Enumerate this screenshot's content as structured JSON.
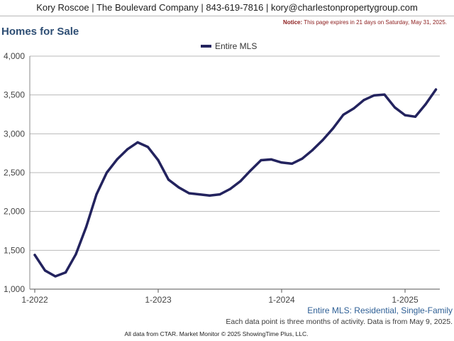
{
  "header": {
    "contact": "Kory Roscoe | The Boulevard Company | 843-619-7816 | kory@charlestonpropertygroup.com"
  },
  "page_title": "Homes for Sale",
  "notice": {
    "label": "Notice:",
    "text": "This page expires in 21 days on Saturday, May 31, 2025."
  },
  "subtitle": "Entire MLS: Residential, Single-Family",
  "footnote": "Each data point is three months of activity. Data is from May 9, 2025.",
  "credit": "All data from CTAR. Market Monitor © 2025 ShowingTime Plus, LLC.",
  "chart_data": {
    "type": "line",
    "title": "Homes for Sale",
    "xlabel": "",
    "ylabel": "",
    "ylim": [
      1000,
      4000
    ],
    "grid": true,
    "legend": "top-center",
    "y_ticks": [
      1000,
      1500,
      2000,
      2500,
      3000,
      3500,
      4000
    ],
    "y_tick_labels": [
      "1,000",
      "1,500",
      "2,000",
      "2,500",
      "3,000",
      "3,500",
      "4,000"
    ],
    "x_tick_labels": [
      "1-2022",
      "1-2023",
      "1-2024",
      "1-2025"
    ],
    "x": [
      "1-2022",
      "2-2022",
      "3-2022",
      "4-2022",
      "5-2022",
      "6-2022",
      "7-2022",
      "8-2022",
      "9-2022",
      "10-2022",
      "11-2022",
      "12-2022",
      "1-2023",
      "2-2023",
      "3-2023",
      "4-2023",
      "5-2023",
      "6-2023",
      "7-2023",
      "8-2023",
      "9-2023",
      "10-2023",
      "11-2023",
      "12-2023",
      "1-2024",
      "2-2024",
      "3-2024",
      "4-2024",
      "5-2024",
      "6-2024",
      "7-2024",
      "8-2024",
      "9-2024",
      "10-2024",
      "11-2024",
      "12-2024",
      "1-2025",
      "2-2025",
      "3-2025",
      "4-2025"
    ],
    "series": [
      {
        "name": "Entire MLS",
        "color": "#23235e",
        "values": [
          1440,
          1240,
          1165,
          1215,
          1450,
          1800,
          2220,
          2500,
          2670,
          2800,
          2890,
          2830,
          2660,
          2410,
          2310,
          2235,
          2220,
          2205,
          2220,
          2290,
          2390,
          2530,
          2660,
          2670,
          2630,
          2615,
          2680,
          2790,
          2920,
          3070,
          3245,
          3325,
          3435,
          3495,
          3505,
          3340,
          3240,
          3220,
          3380,
          3570
        ]
      }
    ]
  }
}
